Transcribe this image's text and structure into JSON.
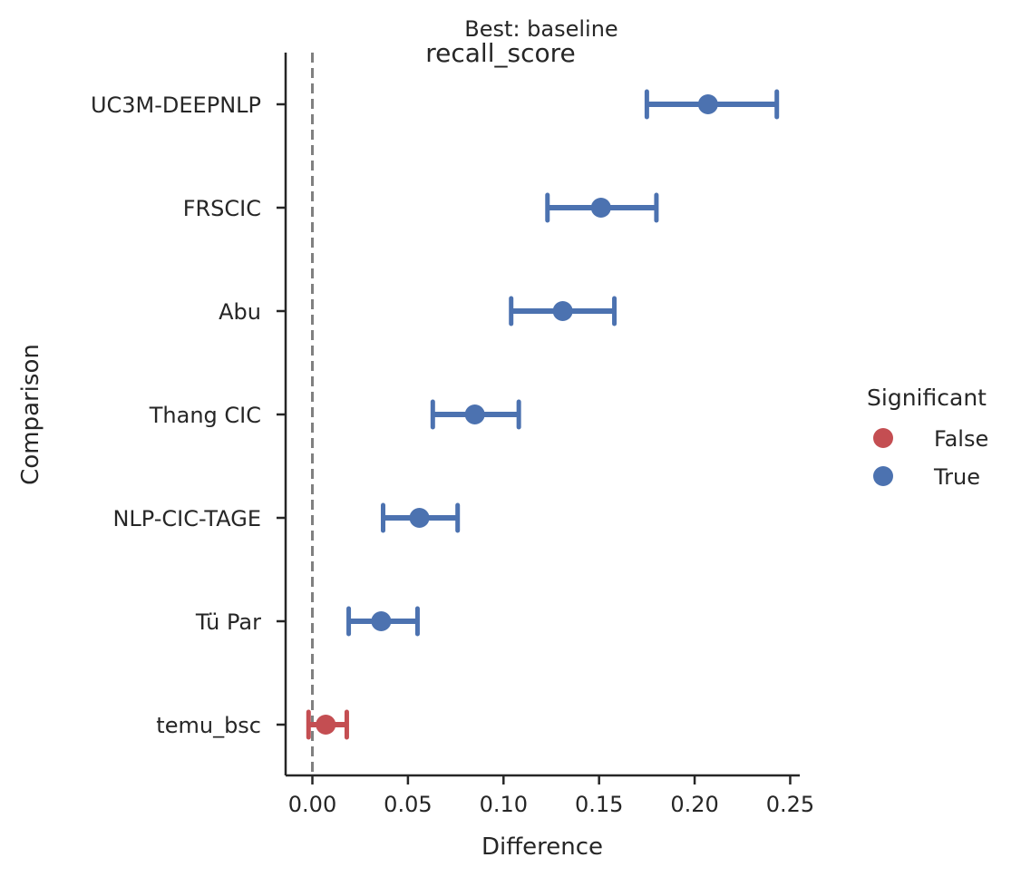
{
  "chart_data": {
    "type": "scatter",
    "title": "recall_score",
    "subtitle": "Best: baseline",
    "xlabel": "Difference",
    "ylabel": "Comparison",
    "xlim": [
      -0.014,
      0.255
    ],
    "xticks": [
      "0.00",
      "0.05",
      "0.10",
      "0.15",
      "0.20",
      "0.25"
    ],
    "xtick_values": [
      0.0,
      0.05,
      0.1,
      0.15,
      0.2,
      0.25
    ],
    "reference_line": 0.0,
    "grid": false,
    "legend": {
      "title": "Significant",
      "placement": "right",
      "entries": [
        {
          "label": "False",
          "color": "#c44e52"
        },
        {
          "label": "True",
          "color": "#4c72b0"
        }
      ]
    },
    "categories": [
      "UC3M-DEEPNLP",
      "FRSCIC",
      "Abu",
      "Thang CIC",
      "NLP-CIC-TAGE",
      "Tü Par",
      "temu_bsc"
    ],
    "points": [
      {
        "category": "UC3M-DEEPNLP",
        "value": 0.207,
        "ci_low": 0.175,
        "ci_high": 0.243,
        "significant": "True"
      },
      {
        "category": "FRSCIC",
        "value": 0.151,
        "ci_low": 0.123,
        "ci_high": 0.18,
        "significant": "True"
      },
      {
        "category": "Abu",
        "value": 0.131,
        "ci_low": 0.104,
        "ci_high": 0.158,
        "significant": "True"
      },
      {
        "category": "Thang CIC",
        "value": 0.085,
        "ci_low": 0.063,
        "ci_high": 0.108,
        "significant": "True"
      },
      {
        "category": "NLP-CIC-TAGE",
        "value": 0.056,
        "ci_low": 0.037,
        "ci_high": 0.076,
        "significant": "True"
      },
      {
        "category": "Tü Par",
        "value": 0.036,
        "ci_low": 0.019,
        "ci_high": 0.055,
        "significant": "True"
      },
      {
        "category": "temu_bsc",
        "value": 0.007,
        "ci_low": -0.002,
        "ci_high": 0.018,
        "significant": "False"
      }
    ],
    "colors": {
      "True": "#4c72b0",
      "False": "#c44e52",
      "reference_line": "#808080",
      "axis": "#262626"
    }
  }
}
